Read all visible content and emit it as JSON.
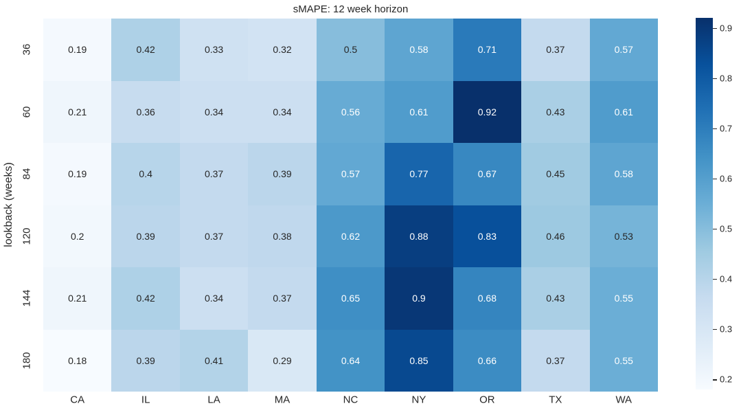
{
  "chart_data": {
    "type": "heatmap",
    "title": "sMAPE: 12 week horizon",
    "xlabel": "",
    "ylabel": "lookback (weeks)",
    "columns": [
      "CA",
      "IL",
      "LA",
      "MA",
      "NC",
      "NY",
      "OR",
      "TX",
      "WA"
    ],
    "rows": [
      "36",
      "60",
      "84",
      "120",
      "144",
      "180"
    ],
    "values": [
      [
        0.19,
        0.42,
        0.33,
        0.32,
        0.5,
        0.58,
        0.71,
        0.37,
        0.57
      ],
      [
        0.21,
        0.36,
        0.34,
        0.34,
        0.56,
        0.61,
        0.92,
        0.43,
        0.61
      ],
      [
        0.19,
        0.4,
        0.37,
        0.39,
        0.57,
        0.77,
        0.67,
        0.45,
        0.58
      ],
      [
        0.2,
        0.39,
        0.37,
        0.38,
        0.62,
        0.88,
        0.83,
        0.46,
        0.53
      ],
      [
        0.21,
        0.42,
        0.34,
        0.37,
        0.65,
        0.9,
        0.68,
        0.43,
        0.55
      ],
      [
        0.18,
        0.39,
        0.41,
        0.29,
        0.64,
        0.85,
        0.66,
        0.37,
        0.55
      ]
    ],
    "vmin": 0.18,
    "vmax": 0.92,
    "colormap": "Blues",
    "colormap_stops": [
      "#f7fbff",
      "#deebf7",
      "#c6dbef",
      "#9ecae1",
      "#6baed6",
      "#4292c6",
      "#2171b5",
      "#08519c",
      "#08306b"
    ],
    "colorbar_ticks": [
      0.2,
      0.3,
      0.4,
      0.5,
      0.6,
      0.7,
      0.8,
      0.9
    ],
    "annotation_dark_color": "#262626",
    "annotation_light_color": "#ffffff",
    "legend_position": "right",
    "grid": false
  }
}
